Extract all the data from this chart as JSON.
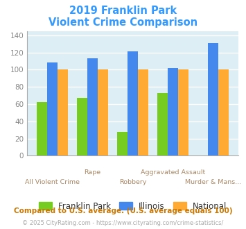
{
  "title_line1": "2019 Franklin Park",
  "title_line2": "Violent Crime Comparison",
  "title_color": "#3399ff",
  "categories": [
    "All Violent Crime",
    "Rape",
    "Robbery",
    "Aggravated Assault",
    "Murder & Mans..."
  ],
  "franklin_park": [
    62,
    67,
    28,
    73,
    0
  ],
  "illinois": [
    108,
    113,
    121,
    102,
    131
  ],
  "national": [
    100,
    100,
    100,
    100,
    100
  ],
  "bar_colors": {
    "franklin_park": "#77cc22",
    "illinois": "#4488ee",
    "national": "#ffaa33"
  },
  "ylim": [
    0,
    145
  ],
  "yticks": [
    0,
    20,
    40,
    60,
    80,
    100,
    120,
    140
  ],
  "legend_labels": [
    "Franklin Park",
    "Illinois",
    "National"
  ],
  "footnote1": "Compared to U.S. average. (U.S. average equals 100)",
  "footnote2": "© 2025 CityRating.com - https://www.cityrating.com/crime-statistics/",
  "footnote1_color": "#cc7700",
  "footnote2_color": "#aaaaaa",
  "bg_color": "#ddeef5",
  "grid_color": "#ffffff",
  "tick_label_color": "#aa8866",
  "ytick_color": "#888888"
}
